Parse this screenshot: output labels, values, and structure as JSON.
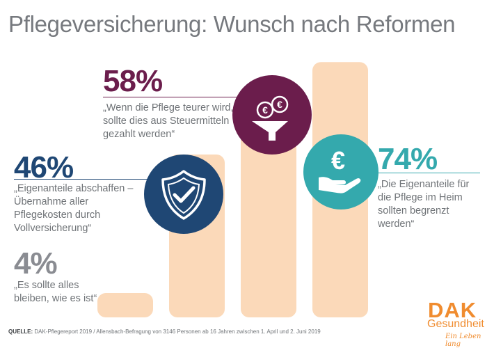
{
  "title": "Pflegeversicherung: Wunsch nach Reformen",
  "chart_data": {
    "type": "bar",
    "categories": [
      "„Es sollte alles bleiben, wie es ist“",
      "„Eigenanteile abschaffen – Übernahme aller Pflegekosten durch Vollversicherung“",
      "„Wenn die Pflege teurer wird, sollte dies aus Steuermitteln gezahlt werden“",
      "„Die Eigenanteile für die Pflege im Heim sollten begrenzt werden“"
    ],
    "values": [
      4,
      46,
      58,
      74
    ],
    "value_labels": [
      "4%",
      "46%",
      "58%",
      "74%"
    ],
    "ylim": [
      0,
      100
    ],
    "grid": false
  },
  "callouts": [
    {
      "pct": "4%",
      "quote": "„Es sollte alles bleiben, wie es ist“",
      "color": "#8a8c92"
    },
    {
      "pct": "46%",
      "quote": "„Eigenanteile abschaffen – Übernahme aller Pflegekosten durch Vollversicherung“",
      "color": "#1f4774",
      "icon": "shield-check-icon"
    },
    {
      "pct": "58%",
      "quote": "„Wenn die Pflege teurer wird, sollte dies aus Steuermitteln gezahlt werden“",
      "color": "#6b1d4c",
      "icon": "coins-funnel-icon"
    },
    {
      "pct": "74%",
      "quote": "„Die Eigenanteile für die Pflege im Heim sollten begrenzt werden“",
      "color": "#34a9ad",
      "icon": "euro-hand-icon"
    }
  ],
  "bar_color": "#fbd9b9",
  "source": {
    "label": "QUELLE:",
    "text": "DAK-Pflegereport 2019 / Allensbach-Befragung von 3146 Personen ab 16 Jahren zwischen 1. April und 2. Juni 2019"
  },
  "logo": {
    "brand": "DAK",
    "name": "Gesundheit",
    "tagline": "Ein Leben lang",
    "color": "#f08c2f"
  }
}
